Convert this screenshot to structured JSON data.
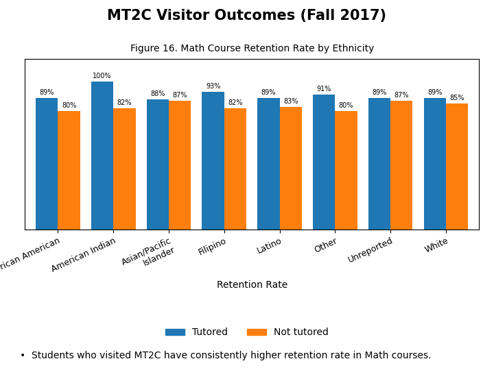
{
  "chart_data": {
    "type": "bar",
    "title": "MT2C Visitor Outcomes (Fall 2017)",
    "subtitle": "Figure 16. Math Course Retention Rate by Ethnicity",
    "categories": [
      "African American",
      "American Indian",
      "Asian/Pacific\nIslander",
      "Filipino",
      "Latino",
      "Other",
      "Unreported",
      "White"
    ],
    "series": [
      {
        "name": "Tutored",
        "values": [
          89,
          100,
          88,
          93,
          89,
          91,
          89,
          89
        ],
        "value_labels": [
          "89%",
          "100%",
          "88%",
          "93%",
          "89%",
          "91%",
          "89%",
          "89%"
        ]
      },
      {
        "name": "Not tutored",
        "values": [
          80,
          82,
          87,
          82,
          83,
          80,
          87,
          85
        ],
        "value_labels": [
          "80%",
          "82%",
          "87%",
          "82%",
          "83%",
          "80%",
          "87%",
          "85%"
        ]
      }
    ],
    "xlabel": "Retention Rate",
    "ylim": [
      0,
      115
    ],
    "yticks": [],
    "tick_labels": "x",
    "data_labels": true,
    "legend": "lower center",
    "annotations": [
      "•  Students who visited MT2C have consistently higher retention rate in Math courses."
    ]
  }
}
